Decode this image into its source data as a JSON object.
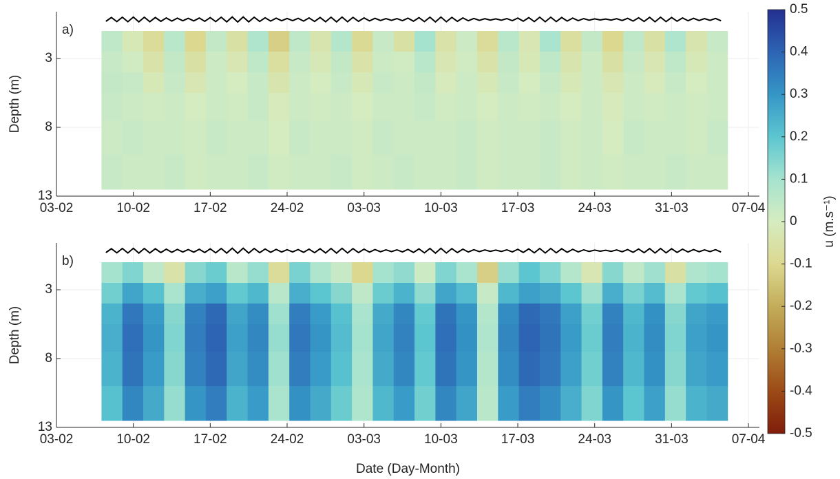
{
  "chart_data": [
    {
      "type": "heatmap",
      "panel_label": "a)",
      "ylabel": "Depth (m)",
      "xlim": [
        0,
        64
      ],
      "ylim": [
        -0.4,
        13
      ],
      "yreverse": true,
      "grid": true,
      "xticks": [
        {
          "value": 0,
          "label": "03-02"
        },
        {
          "value": 7,
          "label": "10-02"
        },
        {
          "value": 14,
          "label": "17-02"
        },
        {
          "value": 21,
          "label": "24-02"
        },
        {
          "value": 28,
          "label": "03-03"
        },
        {
          "value": 35,
          "label": "10-03"
        },
        {
          "value": 42,
          "label": "17-03"
        },
        {
          "value": 49,
          "label": "24-03"
        },
        {
          "value": 56,
          "label": "31-03"
        },
        {
          "value": 63,
          "label": "07-04"
        }
      ],
      "yticks": [
        3,
        8,
        13
      ],
      "x": [
        4.1,
        6,
        7.9,
        9.8,
        11.7,
        13.6,
        15.5,
        17.4,
        19.3,
        21.2,
        23.1,
        25,
        26.9,
        28.8,
        30.7,
        32.6,
        34.5,
        36.4,
        38.3,
        40.2,
        42.1,
        44,
        45.9,
        47.8,
        49.7,
        51.6,
        53.5,
        55.4,
        57.3,
        59.2,
        61.1
      ],
      "y": [
        1,
        2.5,
        4,
        5.5,
        7.5,
        10,
        12.5
      ],
      "z": [
        [
          0.05,
          -0.02,
          -0.08,
          0.06,
          -0.1,
          0.04,
          -0.06,
          0.08,
          -0.12,
          0.05,
          -0.04,
          0.07,
          -0.09,
          0.03,
          -0.06,
          0.1,
          -0.05,
          0.02,
          -0.08,
          0.06,
          -0.03,
          0.09,
          -0.07,
          0.04,
          -0.1,
          0.05,
          -0.06,
          0.08,
          -0.04,
          0.03
        ],
        [
          0.03,
          0.01,
          -0.05,
          0.04,
          -0.06,
          0.02,
          -0.03,
          0.05,
          -0.07,
          0.03,
          -0.02,
          0.04,
          -0.05,
          0.02,
          0.01,
          0.06,
          -0.03,
          0.01,
          -0.05,
          0.04,
          -0.02,
          0.05,
          -0.04,
          0.02,
          -0.06,
          0.03,
          -0.03,
          0.05,
          -0.02,
          0.02
        ],
        [
          0.04,
          0.03,
          -0.02,
          0.03,
          -0.03,
          0.02,
          0,
          0.03,
          -0.04,
          0.02,
          0,
          0.03,
          -0.02,
          0.03,
          0.02,
          0.04,
          -0.01,
          0.02,
          -0.02,
          0.03,
          0,
          0.03,
          -0.02,
          0.02,
          -0.03,
          0.02,
          -0.01,
          0.03,
          0,
          0.02
        ],
        [
          0.03,
          0.02,
          0.01,
          0.02,
          0,
          0.02,
          0.01,
          0.03,
          -0.01,
          0.02,
          0.01,
          0.02,
          0,
          0.02,
          0.02,
          0.03,
          0.01,
          0.02,
          0,
          0.02,
          0.01,
          0.02,
          0,
          0.02,
          -0.01,
          0.02,
          0.01,
          0.02,
          0.01,
          0.02
        ],
        [
          0.02,
          0.03,
          0.02,
          0.02,
          0.01,
          0.03,
          0.02,
          0.02,
          0,
          0.03,
          0.02,
          0.02,
          0.01,
          0.03,
          0.02,
          0.02,
          0.02,
          0.03,
          0.01,
          0.02,
          0.02,
          0.03,
          0.01,
          0.02,
          0,
          0.03,
          0.02,
          0.02,
          0.01,
          0.03
        ],
        [
          0.03,
          0.02,
          0.02,
          0.03,
          0.01,
          0.02,
          0.02,
          0.03,
          0.01,
          0.02,
          0.02,
          0.03,
          0.01,
          0.02,
          0.03,
          0.02,
          0.02,
          0.03,
          0.01,
          0.02,
          0.02,
          0.03,
          0.01,
          0.02,
          0.01,
          0.02,
          0.02,
          0.03,
          0.02,
          0.02
        ]
      ]
    },
    {
      "type": "heatmap",
      "panel_label": "b)",
      "ylabel": "Depth (m)",
      "xlabel": "Date (Day-Month)",
      "xlim": [
        0,
        64
      ],
      "ylim": [
        -0.4,
        13
      ],
      "yreverse": true,
      "grid": true,
      "xticks": [
        {
          "value": 0,
          "label": "03-02"
        },
        {
          "value": 7,
          "label": "10-02"
        },
        {
          "value": 14,
          "label": "17-02"
        },
        {
          "value": 21,
          "label": "24-02"
        },
        {
          "value": 28,
          "label": "03-03"
        },
        {
          "value": 35,
          "label": "10-03"
        },
        {
          "value": 42,
          "label": "17-03"
        },
        {
          "value": 49,
          "label": "24-03"
        },
        {
          "value": 56,
          "label": "31-03"
        },
        {
          "value": 63,
          "label": "07-04"
        }
      ],
      "yticks": [
        3,
        8,
        13
      ],
      "x": [
        4.1,
        6,
        7.9,
        9.8,
        11.7,
        13.6,
        15.5,
        17.4,
        19.3,
        21.2,
        23.1,
        25,
        26.9,
        28.8,
        30.7,
        32.6,
        34.5,
        36.4,
        38.3,
        40.2,
        42.1,
        44,
        45.9,
        47.8,
        49.7,
        51.6,
        53.5,
        55.4,
        57.3,
        59.2,
        61.1
      ],
      "y": [
        1,
        2.5,
        4,
        5.5,
        7.5,
        10,
        12.5
      ],
      "z": [
        [
          0.1,
          0.15,
          0.05,
          -0.05,
          0.14,
          0.18,
          0.06,
          0.12,
          -0.08,
          0.16,
          0.08,
          0.03,
          -0.1,
          0.1,
          0.13,
          0.02,
          0.15,
          0.09,
          -0.12,
          0.12,
          0.2,
          0.15,
          0.07,
          -0.03,
          0.14,
          0.05,
          0.11,
          -0.06,
          0.08,
          0.1
        ],
        [
          0.17,
          0.27,
          0.21,
          0.09,
          0.25,
          0.28,
          0.19,
          0.23,
          0.06,
          0.25,
          0.2,
          0.14,
          0.05,
          0.18,
          0.24,
          0.13,
          0.27,
          0.22,
          0.03,
          0.23,
          0.28,
          0.26,
          0.2,
          0.11,
          0.25,
          0.16,
          0.22,
          0.09,
          0.19,
          0.21
        ],
        [
          0.24,
          0.36,
          0.29,
          0.14,
          0.34,
          0.39,
          0.27,
          0.32,
          0.11,
          0.35,
          0.29,
          0.21,
          0.09,
          0.26,
          0.33,
          0.19,
          0.37,
          0.3,
          0.07,
          0.32,
          0.39,
          0.36,
          0.28,
          0.17,
          0.34,
          0.23,
          0.31,
          0.14,
          0.27,
          0.29
        ],
        [
          0.25,
          0.38,
          0.3,
          0.15,
          0.35,
          0.4,
          0.28,
          0.33,
          0.12,
          0.36,
          0.3,
          0.22,
          0.1,
          0.27,
          0.34,
          0.2,
          0.38,
          0.31,
          0.08,
          0.33,
          0.4,
          0.37,
          0.29,
          0.18,
          0.35,
          0.24,
          0.32,
          0.15,
          0.28,
          0.3
        ],
        [
          0.24,
          0.37,
          0.29,
          0.14,
          0.34,
          0.39,
          0.27,
          0.32,
          0.11,
          0.35,
          0.29,
          0.21,
          0.09,
          0.26,
          0.33,
          0.19,
          0.37,
          0.3,
          0.07,
          0.32,
          0.39,
          0.36,
          0.28,
          0.17,
          0.34,
          0.23,
          0.31,
          0.14,
          0.27,
          0.29
        ],
        [
          0.21,
          0.33,
          0.26,
          0.12,
          0.3,
          0.35,
          0.24,
          0.29,
          0.09,
          0.31,
          0.26,
          0.18,
          0.08,
          0.23,
          0.29,
          0.17,
          0.33,
          0.27,
          0.06,
          0.29,
          0.35,
          0.32,
          0.25,
          0.15,
          0.3,
          0.2,
          0.28,
          0.12,
          0.24,
          0.26
        ]
      ]
    }
  ],
  "tide": {
    "type": "line",
    "color": "#000000",
    "x": [
      4.5,
      5,
      5.5,
      6,
      6.5,
      7,
      7.5,
      8,
      8.5,
      9,
      9.5,
      10,
      10.5,
      11,
      11.5,
      12,
      12.5,
      13,
      13.5,
      14,
      14.5,
      15,
      15.5,
      16,
      16.5,
      17,
      17.5,
      18,
      18.5,
      19,
      19.5,
      20,
      20.5,
      21,
      21.5,
      22,
      22.5,
      23,
      23.5,
      24,
      24.5,
      25,
      25.5,
      26,
      26.5,
      27,
      27.5,
      28,
      28.5,
      29,
      29.5,
      30,
      30.5,
      31,
      31.5,
      32,
      32.5,
      33,
      33.5,
      34,
      34.5,
      35,
      35.5,
      36,
      36.5,
      37,
      37.5,
      38,
      38.5,
      39,
      39.5,
      40,
      40.5,
      41,
      41.5,
      42,
      42.5,
      43,
      43.5,
      44,
      44.5,
      45,
      45.5,
      46,
      46.5,
      47,
      47.5,
      48,
      48.5,
      49,
      49.5,
      50,
      50.5,
      51,
      51.5,
      52,
      52.5,
      53,
      53.5,
      54,
      54.5,
      55,
      55.5,
      56,
      56.5,
      57,
      57.5,
      58,
      58.5,
      59,
      59.5,
      60,
      60.5
    ],
    "values": [
      0.3,
      0.02,
      0.32,
      0.0,
      0.33,
      -0.01,
      0.34,
      0.0,
      0.33,
      0.02,
      0.3,
      0.05,
      0.28,
      0.07,
      0.26,
      0.08,
      0.27,
      0.06,
      0.3,
      0.03,
      0.32,
      0.0,
      0.34,
      -0.02,
      0.35,
      -0.02,
      0.34,
      0.0,
      0.31,
      0.04,
      0.28,
      0.07,
      0.26,
      0.09,
      0.25,
      0.08,
      0.28,
      0.05,
      0.31,
      0.02,
      0.33,
      0.0,
      0.34,
      -0.01,
      0.33,
      0.01,
      0.3,
      0.05,
      0.27,
      0.08,
      0.24,
      0.1,
      0.23,
      0.1,
      0.25,
      0.07,
      0.29,
      0.03,
      0.32,
      0.0,
      0.34,
      -0.01,
      0.33,
      0.01,
      0.3,
      0.05,
      0.26,
      0.09,
      0.23,
      0.11,
      0.21,
      0.12,
      0.22,
      0.1,
      0.25,
      0.06,
      0.29,
      0.03,
      0.32,
      0.0,
      0.33,
      0.0,
      0.32,
      0.02,
      0.28,
      0.06,
      0.25,
      0.1,
      0.22,
      0.12,
      0.2,
      0.13,
      0.21,
      0.11,
      0.24,
      0.08,
      0.28,
      0.04,
      0.31,
      0.01,
      0.33,
      0.0,
      0.32,
      0.02,
      0.29,
      0.05,
      0.26,
      0.08,
      0.24,
      0.1,
      0.23,
      0.09,
      0.26
    ]
  },
  "colorbar": {
    "label": "u (m.s⁻¹)",
    "clim": [
      -0.5,
      0.5
    ],
    "ticks": [
      0.5,
      0.4,
      0.3,
      0.2,
      0.1,
      0,
      -0.1,
      -0.2,
      -0.3,
      -0.4,
      -0.5
    ],
    "colormap": [
      "#7f1d0b",
      "#9c4a16",
      "#b07f35",
      "#c3ad5a",
      "#dcd890",
      "#d5ecc0",
      "#a6e3cf",
      "#5cc6d0",
      "#3596c6",
      "#2d64b4",
      "#242f8f"
    ]
  }
}
